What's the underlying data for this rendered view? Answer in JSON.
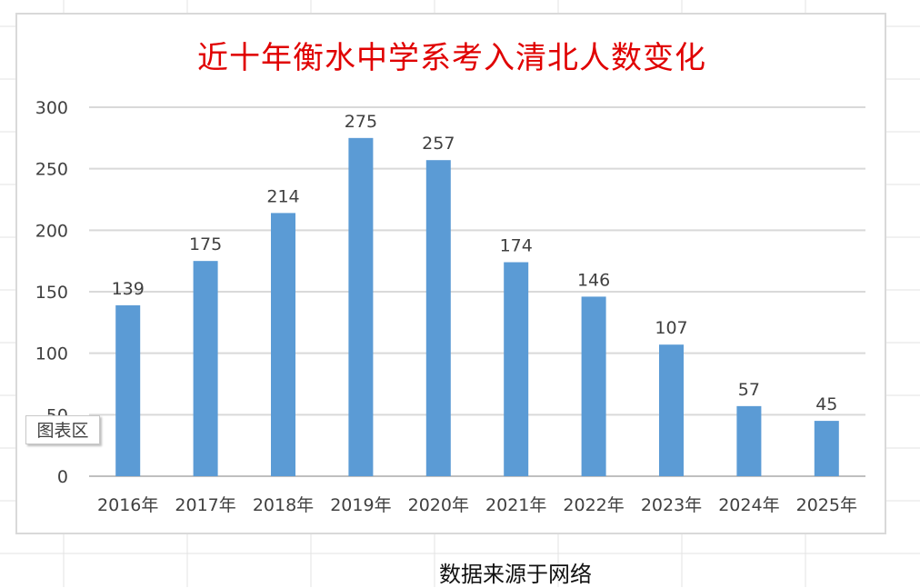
{
  "chart_data": {
    "type": "bar",
    "title": "近十年衡水中学系考入清北人数变化",
    "categories": [
      "2016年",
      "2017年",
      "2018年",
      "2019年",
      "2020年",
      "2021年",
      "2022年",
      "2023年",
      "2024年",
      "2025年"
    ],
    "values": [
      139,
      175,
      214,
      275,
      257,
      174,
      146,
      107,
      57,
      45
    ],
    "xlabel": "",
    "ylabel": "",
    "ylim": [
      0,
      300
    ],
    "yticks": [
      0,
      50,
      100,
      150,
      200,
      250,
      300
    ],
    "grid": true,
    "legend": "none",
    "data_labels": true,
    "colors": {
      "bar": "#5b9bd5",
      "title": "#e00000",
      "grid": "#d9d9d9",
      "text": "#404040"
    }
  },
  "tooltip": {
    "label": "图表区"
  },
  "footnote": {
    "text": "数据来源于网络"
  }
}
